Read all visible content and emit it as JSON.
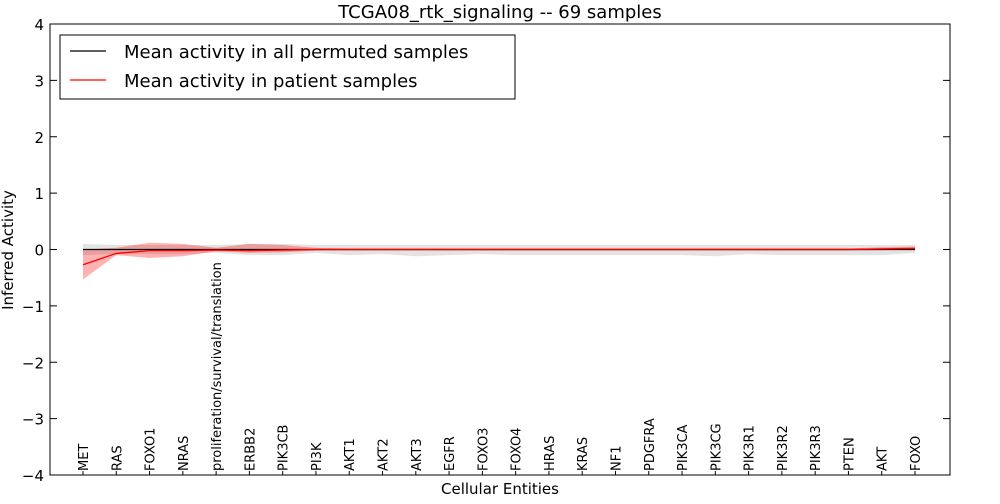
{
  "chart_data": {
    "type": "line",
    "title": "TCGA08_rtk_signaling -- 69 samples",
    "xlabel": "Cellular Entities",
    "ylabel": "Inferred Activity",
    "ylim": [
      -4,
      4
    ],
    "yticks": [
      -4,
      -3,
      -2,
      -1,
      0,
      1,
      2,
      3,
      4
    ],
    "ytick_labels": [
      "−4",
      "−3",
      "−2",
      "−1",
      "0",
      "1",
      "2",
      "3",
      "4"
    ],
    "grid": false,
    "legend_placement": "top-left",
    "categories": [
      "MET",
      "RAS",
      "FOXO1",
      "NRAS",
      "proliferation/survival/translation",
      "ERBB2",
      "PIK3CB",
      "PI3K",
      "AKT1",
      "AKT2",
      "AKT3",
      "EGFR",
      "FOXO3",
      "FOXO4",
      "HRAS",
      "KRAS",
      "NF1",
      "PDGFRA",
      "PIK3CA",
      "PIK3CG",
      "PIK3R1",
      "PIK3R2",
      "PIK3R3",
      "PTEN",
      "AKT",
      "FOXO"
    ],
    "series": [
      {
        "name": "Mean activity in all permuted samples",
        "color": "#000000",
        "values": [
          0,
          0,
          0,
          0,
          0,
          0,
          0,
          0,
          0,
          0,
          0,
          0,
          0,
          0,
          0,
          0,
          0,
          0,
          0,
          0,
          0,
          0,
          0,
          0,
          0,
          0
        ],
        "lower": [
          -0.1,
          -0.08,
          -0.08,
          -0.08,
          -0.06,
          -0.1,
          -0.1,
          -0.06,
          -0.1,
          -0.08,
          -0.12,
          -0.1,
          -0.08,
          -0.1,
          -0.1,
          -0.1,
          -0.1,
          -0.1,
          -0.1,
          -0.12,
          -0.08,
          -0.1,
          -0.1,
          -0.1,
          -0.1,
          -0.06
        ],
        "upper": [
          0.1,
          0.08,
          0.08,
          0.08,
          0.08,
          0.1,
          0.1,
          0.08,
          0.08,
          0.08,
          0.08,
          0.08,
          0.08,
          0.08,
          0.08,
          0.08,
          0.08,
          0.08,
          0.08,
          0.08,
          0.08,
          0.08,
          0.08,
          0.08,
          0.08,
          0.08
        ],
        "band_color": "#d9d9d9"
      },
      {
        "name": "Mean activity in patient samples",
        "color": "#ff0000",
        "values": [
          -0.27,
          -0.07,
          -0.02,
          -0.02,
          -0.01,
          -0.02,
          -0.01,
          0,
          0,
          0,
          0,
          0,
          0,
          0,
          0,
          0,
          0,
          0,
          0,
          0,
          0,
          0,
          0,
          0,
          0.01,
          0.02
        ],
        "lower": [
          -0.53,
          -0.1,
          -0.15,
          -0.12,
          -0.03,
          -0.06,
          -0.05,
          -0.02,
          -0.02,
          -0.02,
          -0.02,
          -0.02,
          -0.02,
          -0.02,
          -0.02,
          -0.02,
          -0.02,
          -0.02,
          -0.02,
          -0.02,
          -0.02,
          -0.02,
          -0.02,
          -0.02,
          -0.01,
          0
        ],
        "upper": [
          0,
          0.03,
          0.12,
          0.1,
          0.03,
          0.1,
          0.08,
          0.03,
          0.02,
          0.02,
          0.02,
          0.02,
          0.02,
          0.02,
          0.02,
          0.02,
          0.02,
          0.02,
          0.02,
          0.02,
          0.02,
          0.02,
          0.02,
          0.02,
          0.04,
          0.05
        ],
        "band_color": "#ff0000"
      }
    ]
  }
}
